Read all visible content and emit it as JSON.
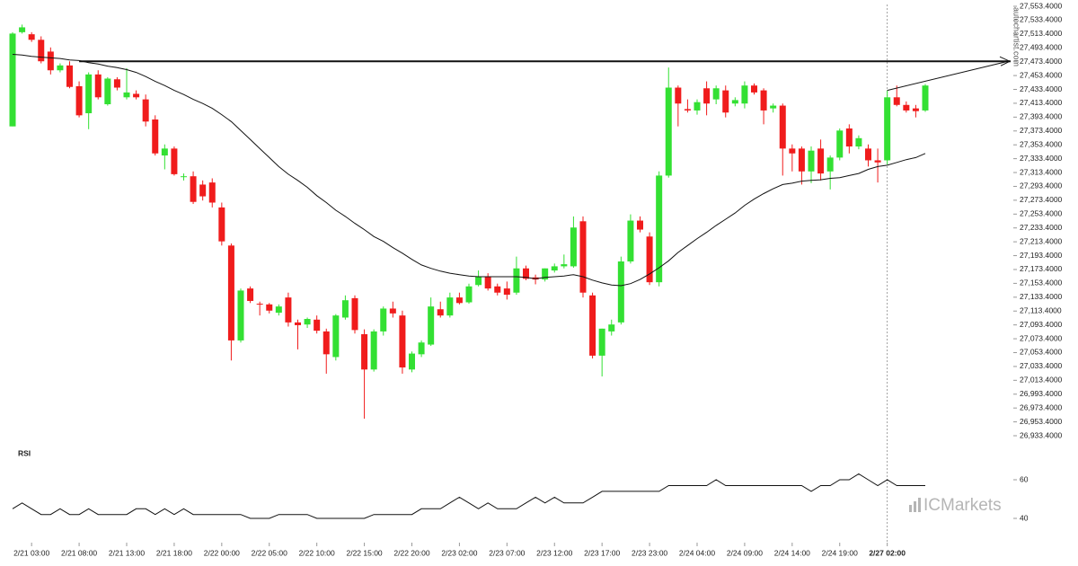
{
  "brand": "autochartist.com",
  "watermark": "ICMarkets",
  "chart_data": [
    {
      "type": "candlestick",
      "categories": [
        null,
        null,
        "2/21 03:00",
        null,
        null,
        null,
        null,
        "2/21 08:00",
        null,
        null,
        null,
        null,
        "2/21 13:00",
        null,
        null,
        null,
        null,
        "2/21 18:00",
        null,
        null,
        null,
        null,
        "2/22 00:00",
        null,
        null,
        null,
        null,
        "2/22 05:00",
        null,
        null,
        null,
        null,
        "2/22 10:00",
        null,
        null,
        null,
        null,
        "2/22 15:00",
        null,
        null,
        null,
        null,
        "2/22 20:00",
        null,
        null,
        null,
        null,
        "2/23 02:00",
        null,
        null,
        null,
        null,
        "2/23 07:00",
        null,
        null,
        null,
        null,
        "2/23 12:00",
        null,
        null,
        null,
        null,
        "2/23 17:00",
        null,
        null,
        null,
        null,
        "2/23 23:00",
        null,
        null,
        null,
        null,
        "2/24 04:00",
        null,
        null,
        null,
        null,
        "2/24 09:00",
        null,
        null,
        null,
        null,
        "2/24 14:00",
        null,
        null,
        null,
        null,
        "2/24 19:00",
        null,
        null,
        null,
        null,
        "2/27 02:00",
        null,
        null,
        null,
        null
      ],
      "open": [
        27380,
        27516,
        27513,
        27505,
        27488,
        27461,
        27468,
        27438,
        27399,
        27455,
        27412,
        27448,
        27422,
        27427,
        27419,
        27390,
        27338,
        27348,
        27307,
        27308,
        27296,
        27299,
        27263,
        27208,
        27071,
        27146,
        27124,
        27123,
        27111,
        27133,
        27097,
        27094,
        27101,
        27084,
        27047,
        27104,
        27132,
        27080,
        27029,
        27084,
        27117,
        27107,
        27029,
        27051,
        27065,
        27116,
        27107,
        27133,
        27126,
        27151,
        27163,
        27149,
        27146,
        27140,
        27175,
        27162,
        27159,
        27172,
        27178,
        27178,
        27243,
        27136,
        27049,
        27084,
        27097,
        27185,
        27244,
        27221,
        27155,
        27309,
        27436,
        27405,
        27403,
        27435,
        27419,
        27432,
        27413,
        27413,
        27439,
        27432,
        27406,
        27410,
        27348,
        27348,
        27315,
        27348,
        27315,
        27335,
        27377,
        27351,
        27348,
        27331,
        27331,
        27422,
        27411,
        27406,
        27403
      ],
      "high": [
        27516,
        27527,
        27516,
        27510,
        27494,
        27471,
        27474,
        27445,
        27458,
        27461,
        27451,
        27451,
        27464,
        27432,
        27426,
        27396,
        27354,
        27351,
        27312,
        27315,
        27302,
        27305,
        27270,
        27211,
        27146,
        27149,
        27127,
        27125,
        27123,
        27140,
        27101,
        27104,
        27107,
        27088,
        27109,
        27136,
        27136,
        27087,
        27087,
        27120,
        27127,
        27114,
        27055,
        27071,
        27133,
        27127,
        27140,
        27140,
        27153,
        27172,
        27168,
        27153,
        27156,
        27192,
        27179,
        27166,
        27175,
        27182,
        27195,
        27250,
        27250,
        27140,
        27088,
        27101,
        27192,
        27253,
        27250,
        27227,
        27315,
        27465,
        27439,
        27419,
        27419,
        27445,
        27439,
        27439,
        27422,
        27445,
        27442,
        27435,
        27413,
        27413,
        27354,
        27351,
        27351,
        27361,
        27338,
        27377,
        27383,
        27367,
        27354,
        27348,
        27432,
        27439,
        27416,
        27411,
        27441
      ],
      "low": [
        27380,
        27514,
        27502,
        27471,
        27455,
        27458,
        27435,
        27393,
        27376,
        27419,
        27410,
        27432,
        27419,
        27419,
        27380,
        27338,
        27318,
        27309,
        27302,
        27268,
        27273,
        27263,
        27208,
        27042,
        27068,
        27125,
        27107,
        27110,
        27107,
        27091,
        27058,
        27089,
        27081,
        27023,
        27042,
        27101,
        27081,
        26958,
        27026,
        27078,
        27104,
        27023,
        27025,
        27047,
        27063,
        27104,
        27104,
        27123,
        27124,
        27149,
        27143,
        27136,
        27130,
        27137,
        27158,
        27152,
        27156,
        27169,
        27175,
        27176,
        27133,
        27045,
        27019,
        27078,
        27094,
        27182,
        27227,
        27151,
        27149,
        27306,
        27380,
        27400,
        27397,
        27396,
        27412,
        27393,
        27409,
        27406,
        27426,
        27383,
        27400,
        27309,
        27315,
        27296,
        27298,
        27302,
        27289,
        27331,
        27341,
        27347,
        27322,
        27299,
        27325,
        27409,
        27400,
        27393,
        27401
      ],
      "close": [
        27514,
        27523,
        27505,
        27474,
        27461,
        27468,
        27437,
        27396,
        27455,
        27422,
        27449,
        27436,
        27429,
        27422,
        27387,
        27341,
        27348,
        27311,
        27308,
        27271,
        27279,
        27270,
        27214,
        27071,
        27143,
        27128,
        27123,
        27114,
        27120,
        27097,
        27093,
        27102,
        27085,
        27051,
        27107,
        27129,
        27086,
        27029,
        27084,
        27117,
        27110,
        27032,
        27052,
        27068,
        27120,
        27107,
        27133,
        27125,
        27149,
        27163,
        27146,
        27140,
        27137,
        27175,
        27160,
        27159,
        27175,
        27178,
        27181,
        27234,
        27140,
        27049,
        27088,
        27094,
        27185,
        27244,
        27231,
        27155,
        27309,
        27436,
        27413,
        27403,
        27415,
        27413,
        27435,
        27400,
        27418,
        27439,
        27429,
        27403,
        27410,
        27348,
        27341,
        27315,
        27345,
        27312,
        27335,
        27374,
        27351,
        27363,
        27331,
        27328,
        27422,
        27411,
        27403,
        27402,
        27439
      ],
      "up_color": "#33e033",
      "down_color": "#f01c1c",
      "ma": {
        "color": "#111111",
        "values": [
          27484,
          27483,
          27481,
          27480,
          27479,
          27478,
          27476,
          27475,
          27472,
          27470,
          27467,
          27465,
          27462,
          27458,
          27452,
          27445,
          27439,
          27432,
          27426,
          27419,
          27413,
          27406,
          27397,
          27387,
          27374,
          27361,
          27348,
          27335,
          27322,
          27311,
          27302,
          27292,
          27280,
          27270,
          27259,
          27250,
          27240,
          27231,
          27221,
          27214,
          27205,
          27197,
          27188,
          27180,
          27175,
          27171,
          27168,
          27166,
          27164,
          27163,
          27163,
          27163,
          27163,
          27163,
          27162,
          27160,
          27162,
          27163,
          27164,
          27166,
          27163,
          27158,
          27154,
          27151,
          27150,
          27153,
          27159,
          27167,
          27176,
          27186,
          27198,
          27208,
          27218,
          27227,
          27237,
          27246,
          27255,
          27266,
          27275,
          27283,
          27290,
          27296,
          27298,
          27301,
          27302,
          27303,
          27305,
          27306,
          27309,
          27312,
          27318,
          27322,
          27324,
          27328,
          27332,
          27335,
          27341
        ]
      },
      "level": 27474,
      "ylim": [
        26933.4,
        27553.4
      ],
      "yticks": [
        {
          "value": 26933.4,
          "label": "26,933.4000"
        },
        {
          "value": 26953.4,
          "label": "26,953.4000"
        },
        {
          "value": 26973.4,
          "label": "26,973.4000"
        },
        {
          "value": 26993.4,
          "label": "26,993.4000"
        },
        {
          "value": 27013.4,
          "label": "27,013.4000"
        },
        {
          "value": 27033.4,
          "label": "27,033.4000"
        },
        {
          "value": 27053.4,
          "label": "27,053.4000"
        },
        {
          "value": 27073.4,
          "label": "27,073.4000"
        },
        {
          "value": 27093.4,
          "label": "27,093.4000"
        },
        {
          "value": 27113.4,
          "label": "27,113.4000"
        },
        {
          "value": 27133.4,
          "label": "27,133.4000"
        },
        {
          "value": 27153.4,
          "label": "27,153.4000"
        },
        {
          "value": 27173.4,
          "label": "27,173.4000"
        },
        {
          "value": 27193.4,
          "label": "27,193.4000"
        },
        {
          "value": 27213.4,
          "label": "27,213.4000"
        },
        {
          "value": 27233.4,
          "label": "27,233.4000"
        },
        {
          "value": 27253.4,
          "label": "27,253.4000"
        },
        {
          "value": 27273.4,
          "label": "27,273.4000"
        },
        {
          "value": 27293.4,
          "label": "27,293.4000"
        },
        {
          "value": 27313.4,
          "label": "27,313.4000"
        },
        {
          "value": 27333.4,
          "label": "27,333.4000"
        },
        {
          "value": 27353.4,
          "label": "27,353.4000"
        },
        {
          "value": 27373.4,
          "label": "27,373.4000"
        },
        {
          "value": 27393.4,
          "label": "27,393.4000"
        },
        {
          "value": 27413.4,
          "label": "27,413.4000"
        },
        {
          "value": 27433.4,
          "label": "27,433.4000"
        },
        {
          "value": 27453.4,
          "label": "27,453.4000"
        },
        {
          "value": 27473.4,
          "label": "27,473.4000"
        },
        {
          "value": 27493.4,
          "label": "27,493.4000"
        },
        {
          "value": 27513.4,
          "label": "27,513.4000"
        },
        {
          "value": 27533.4,
          "label": "27,533.4000"
        },
        {
          "value": 27553.4,
          "label": "27,553.4000"
        }
      ]
    },
    {
      "type": "line",
      "title": "RSI",
      "series": [
        {
          "name": "RSI",
          "color": "#111111",
          "values": [
            45,
            48,
            45,
            42,
            42,
            45,
            42,
            42,
            45,
            42,
            42,
            42,
            42,
            45,
            45,
            42,
            45,
            42,
            45,
            42,
            42,
            42,
            42,
            42,
            42,
            40,
            40,
            40,
            42,
            42,
            42,
            42,
            40,
            40,
            40,
            40,
            40,
            40,
            42,
            42,
            42,
            42,
            42,
            45,
            45,
            45,
            48,
            51,
            48,
            45,
            48,
            45,
            45,
            45,
            48,
            51,
            48,
            51,
            48,
            48,
            48,
            51,
            54,
            54,
            54,
            54,
            54,
            54,
            54,
            57,
            57,
            57,
            57,
            57,
            60,
            57,
            57,
            57,
            57,
            57,
            57,
            57,
            57,
            57,
            54,
            57,
            57,
            60,
            60,
            63,
            60,
            57,
            60,
            57,
            57,
            57,
            57
          ]
        }
      ],
      "ylim": [
        30,
        70
      ],
      "yticks": [
        40,
        60
      ]
    }
  ]
}
